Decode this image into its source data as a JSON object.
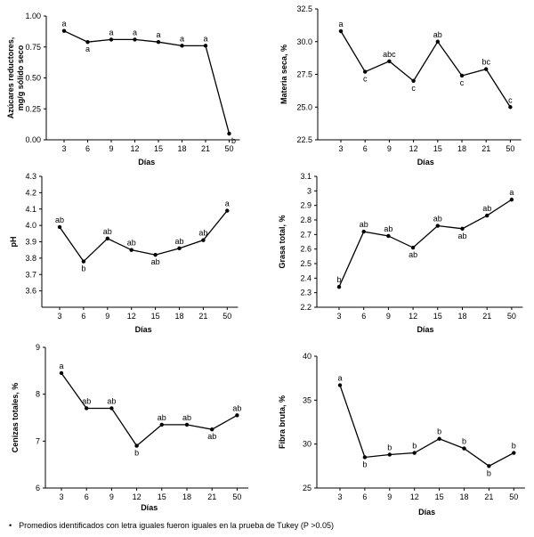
{
  "chart_data": [
    {
      "type": "line",
      "ylabel": [
        "Azúcares reductores,",
        "mg/g sólido seco"
      ],
      "xlabel": "Días",
      "categories": [
        "3",
        "6",
        "9",
        "12",
        "15",
        "18",
        "21",
        "50"
      ],
      "values": [
        0.88,
        0.79,
        0.81,
        0.81,
        0.79,
        0.76,
        0.76,
        0.05
      ],
      "letters": [
        "a",
        "a",
        "a",
        "a",
        "a",
        "a",
        "a",
        "b"
      ],
      "ylim": [
        0,
        1
      ],
      "yticks": [
        0,
        0.25,
        0.5,
        0.75,
        1
      ],
      "yticklabels": [
        "0.00",
        "0.25",
        "0.50",
        "0.75",
        "1.00"
      ]
    },
    {
      "type": "line",
      "ylabel": [
        "Materia seca, %"
      ],
      "xlabel": "Días",
      "categories": [
        "3",
        "6",
        "9",
        "12",
        "15",
        "18",
        "21",
        "50"
      ],
      "values": [
        30.8,
        27.7,
        28.5,
        27.0,
        30.0,
        27.4,
        27.9,
        25.0
      ],
      "letters": [
        "a",
        "c",
        "abc",
        "c",
        "ab",
        "c",
        "bc",
        "c"
      ],
      "ylim": [
        22.5,
        32.5
      ],
      "yticks": [
        22.5,
        25,
        27.5,
        30,
        32.5
      ],
      "yticklabels": [
        "22.5",
        "25.0",
        "27.5",
        "30.0",
        "32.5"
      ]
    },
    {
      "type": "line",
      "ylabel": [
        "pH"
      ],
      "xlabel": "Días",
      "categories": [
        "3",
        "6",
        "9",
        "12",
        "15",
        "18",
        "21",
        "50"
      ],
      "values": [
        3.99,
        3.78,
        3.92,
        3.85,
        3.82,
        3.86,
        3.91,
        4.09
      ],
      "letters": [
        "ab",
        "b",
        "ab",
        "ab",
        "ab",
        "ab",
        "ab",
        "a"
      ],
      "ylim": [
        3.5,
        4.3
      ],
      "yticks": [
        3.6,
        3.7,
        3.8,
        3.9,
        4.0,
        4.1,
        4.2,
        4.3
      ],
      "yticklabels": [
        "3.6",
        "3.7",
        "3.8",
        "3.9",
        "4.0",
        "4.1",
        "4.2",
        "4.3"
      ]
    },
    {
      "type": "line",
      "ylabel": [
        "Grasa total, %"
      ],
      "xlabel": "Días",
      "categories": [
        "3",
        "6",
        "9",
        "12",
        "15",
        "18",
        "21",
        "50"
      ],
      "values": [
        2.34,
        2.72,
        2.69,
        2.61,
        2.76,
        2.74,
        2.83,
        2.94
      ],
      "letters": [
        "b",
        "ab",
        "ab",
        "ab",
        "ab",
        "ab",
        "ab",
        "a"
      ],
      "ylim": [
        2.2,
        3.1
      ],
      "yticks": [
        2.2,
        2.3,
        2.4,
        2.5,
        2.6,
        2.7,
        2.8,
        2.9,
        3.0,
        3.1
      ],
      "yticklabels": [
        "2.2",
        "2.3",
        "2.4",
        "2.5",
        "2.6",
        "2.7",
        "2.8",
        "2.9",
        "3",
        "3.1"
      ]
    },
    {
      "type": "line",
      "ylabel": [
        "Cenizas totales, %"
      ],
      "xlabel": "Días",
      "categories": [
        "3",
        "6",
        "9",
        "12",
        "15",
        "18",
        "21",
        "50"
      ],
      "values": [
        8.45,
        7.7,
        7.7,
        6.9,
        7.35,
        7.35,
        7.25,
        7.55
      ],
      "letters": [
        "a",
        "ab",
        "ab",
        "b",
        "ab",
        "ab",
        "ab",
        "ab"
      ],
      "ylim": [
        6,
        9
      ],
      "yticks": [
        6,
        7,
        8,
        9
      ],
      "yticklabels": [
        "6",
        "7",
        "8",
        "9"
      ]
    },
    {
      "type": "line",
      "ylabel": [
        "Fibra bruta, %"
      ],
      "xlabel": "Días",
      "categories": [
        "3",
        "6",
        "9",
        "12",
        "15",
        "18",
        "21",
        "50"
      ],
      "values": [
        36.7,
        28.5,
        28.8,
        29.0,
        30.6,
        29.5,
        27.5,
        29.0
      ],
      "letters": [
        "a",
        "b",
        "b",
        "b",
        "b",
        "b",
        "b",
        "b"
      ],
      "ylim": [
        25,
        40
      ],
      "yticks": [
        25,
        30,
        35,
        40
      ],
      "yticklabels": [
        "25",
        "30",
        "35",
        "40"
      ]
    }
  ],
  "footnote": {
    "bullet": "•",
    "text": "Promedios identificados con letra iguales fueron iguales en la prueba de Tukey (P >0.05)"
  }
}
